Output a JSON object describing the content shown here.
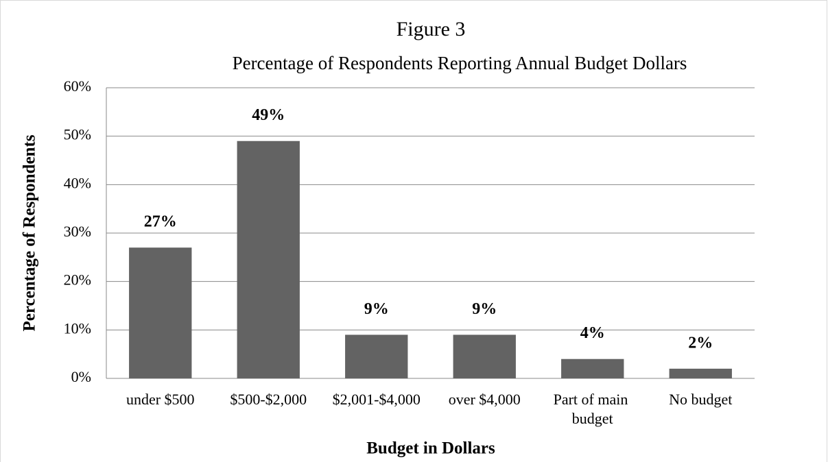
{
  "chart_data": {
    "type": "bar",
    "title": "Figure 3",
    "subtitle": "Percentage of Respondents Reporting Annual Budget Dollars",
    "y_axis_label": "Percentage of Respondents",
    "x_axis_label": "Budget in Dollars",
    "categories": [
      "under $500",
      "$500-$2,000",
      "$2,001-$4,000",
      "over $4,000",
      "Part of main budget",
      "No budget"
    ],
    "values": [
      27,
      49,
      9,
      9,
      4,
      2
    ],
    "value_labels": [
      "27%",
      "49%",
      "9%",
      "9%",
      "4%",
      "2%"
    ],
    "color": "#636363",
    "ylim": [
      0,
      60
    ],
    "yticks": [
      {
        "value": 0,
        "label": "0%"
      },
      {
        "value": 10,
        "label": "10%"
      },
      {
        "value": 20,
        "label": "20%"
      },
      {
        "value": 30,
        "label": "30%"
      },
      {
        "value": 40,
        "label": "40%"
      },
      {
        "value": 50,
        "label": "50%"
      },
      {
        "value": 60,
        "label": "60%"
      }
    ],
    "grid": true
  }
}
